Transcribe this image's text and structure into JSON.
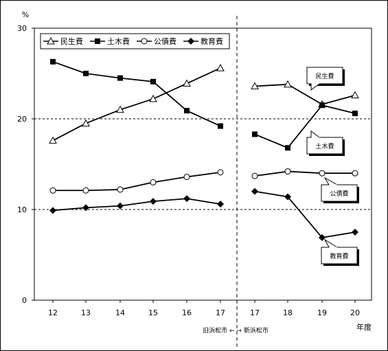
{
  "chart_data": {
    "type": "line",
    "ylabel": "%",
    "xlabel": "年度",
    "ylim": [
      0,
      30
    ],
    "yticks": [
      "0",
      "10",
      "20",
      "30"
    ],
    "x": [
      "12",
      "13",
      "14",
      "15",
      "16",
      "17",
      "17",
      "18",
      "19",
      "20"
    ],
    "era_note": "旧浜松市 ← → 新浜松市",
    "grid": "horizontal dashed at 10 and 20",
    "legend_position": "top-left",
    "series": [
      {
        "name": "民生費",
        "marker": "triangle-open",
        "values": [
          17.6,
          19.5,
          21.0,
          22.2,
          23.9,
          25.6,
          23.6,
          23.8,
          21.6,
          22.6
        ]
      },
      {
        "name": "土木費",
        "marker": "square-filled",
        "values": [
          26.3,
          25.0,
          24.5,
          24.1,
          20.9,
          19.2,
          18.3,
          16.8,
          21.5,
          20.6
        ]
      },
      {
        "name": "公債費",
        "marker": "circle-open",
        "values": [
          12.1,
          12.1,
          12.2,
          13.0,
          13.6,
          14.1,
          13.7,
          14.2,
          14.0,
          14.0
        ]
      },
      {
        "name": "教育費",
        "marker": "diamond-filled",
        "values": [
          9.9,
          10.2,
          10.4,
          10.9,
          11.2,
          10.6,
          12.0,
          11.4,
          6.9,
          7.5
        ]
      }
    ],
    "callouts": [
      "民生費",
      "土木費",
      "公債費",
      "教育費"
    ]
  }
}
